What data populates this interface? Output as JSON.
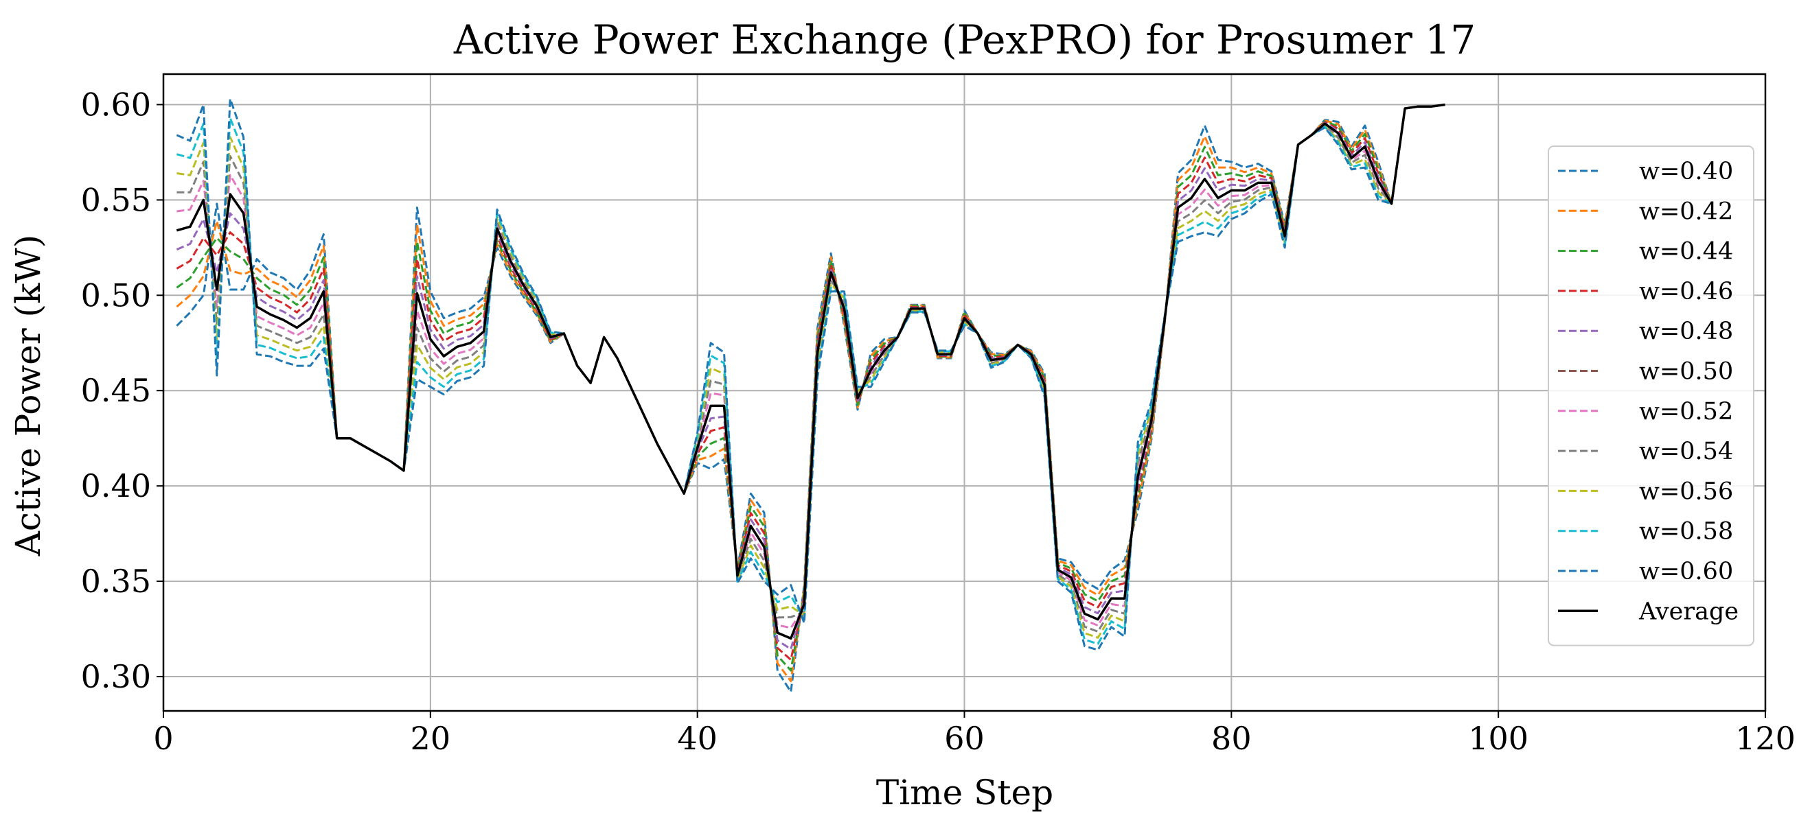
{
  "chart_data": {
    "type": "line",
    "title": "Active Power Exchange (PexPRO) for Prosumer 17",
    "xlabel": "Time Step",
    "ylabel": "Active Power (kW)",
    "xlim": [
      0,
      120
    ],
    "ylim": [
      0.282,
      0.616
    ],
    "xticks": [
      0,
      20,
      40,
      60,
      80,
      100,
      120
    ],
    "yticks": [
      0.3,
      0.35,
      0.4,
      0.45,
      0.5,
      0.55,
      0.6
    ],
    "xtick_labels": [
      "0",
      "20",
      "40",
      "60",
      "80",
      "100",
      "120"
    ],
    "ytick_labels": [
      "0.30",
      "0.35",
      "0.40",
      "0.45",
      "0.50",
      "0.55",
      "0.60"
    ],
    "grid": true,
    "legend_position": "right",
    "average": {
      "name": "Average",
      "color": "#000000",
      "x": [
        1,
        2,
        3,
        4,
        5,
        6,
        7,
        8,
        9,
        10,
        11,
        12,
        13,
        14,
        15,
        16,
        17,
        18,
        19,
        20,
        21,
        22,
        23,
        24,
        25,
        26,
        27,
        28,
        29,
        30,
        31,
        32,
        33,
        34,
        35,
        36,
        37,
        38,
        39,
        40,
        41,
        42,
        43,
        44,
        45,
        46,
        47,
        48,
        49,
        50,
        51,
        52,
        53,
        54,
        55,
        56,
        57,
        58,
        59,
        60,
        61,
        62,
        63,
        64,
        65,
        66,
        67,
        68,
        69,
        70,
        71,
        72,
        73,
        74,
        75,
        76,
        77,
        78,
        79,
        80,
        81,
        82,
        83,
        84,
        85,
        86,
        87,
        88,
        89,
        90,
        91,
        92,
        93,
        94,
        95,
        96
      ],
      "y": [
        0.534,
        0.536,
        0.55,
        0.503,
        0.553,
        0.543,
        0.494,
        0.49,
        0.487,
        0.483,
        0.488,
        0.502,
        0.425,
        0.425,
        0.421,
        0.417,
        0.413,
        0.408,
        0.501,
        0.477,
        0.468,
        0.473,
        0.475,
        0.481,
        0.535,
        0.518,
        0.505,
        0.494,
        0.478,
        0.48,
        0.463,
        0.454,
        0.478,
        0.467,
        0.452,
        0.437,
        0.422,
        0.409,
        0.396,
        0.42,
        0.442,
        0.442,
        0.353,
        0.379,
        0.368,
        0.323,
        0.32,
        0.338,
        0.47,
        0.512,
        0.493,
        0.446,
        0.461,
        0.471,
        0.478,
        0.493,
        0.493,
        0.469,
        0.469,
        0.488,
        0.48,
        0.466,
        0.467,
        0.474,
        0.469,
        0.453,
        0.356,
        0.352,
        0.333,
        0.33,
        0.341,
        0.341,
        0.405,
        0.434,
        0.487,
        0.546,
        0.551,
        0.561,
        0.551,
        0.555,
        0.555,
        0.559,
        0.559,
        0.531,
        0.579,
        0.584,
        0.59,
        0.585,
        0.572,
        0.578,
        0.56,
        0.548,
        0.598,
        0.599,
        0.599,
        0.6
      ]
    },
    "series": [
      {
        "name": "w=0.40",
        "color": "#1f77b4",
        "shift": -0.044,
        "coef": -1.0
      },
      {
        "name": "w=0.42",
        "color": "#ff7f0e",
        "shift": -0.038,
        "coef": -0.8
      },
      {
        "name": "w=0.44",
        "color": "#2ca02c",
        "shift": -0.029,
        "coef": -0.6
      },
      {
        "name": "w=0.46",
        "color": "#d62728",
        "shift": -0.02,
        "coef": -0.4
      },
      {
        "name": "w=0.48",
        "color": "#9467bd",
        "shift": -0.009,
        "coef": -0.2
      },
      {
        "name": "w=0.50",
        "color": "#8c564b",
        "shift": 0.0,
        "coef": 0.0
      },
      {
        "name": "w=0.52",
        "color": "#e377c2",
        "shift": 0.011,
        "coef": 0.2
      },
      {
        "name": "w=0.54",
        "color": "#7f7f7f",
        "shift": 0.02,
        "coef": 0.4
      },
      {
        "name": "w=0.56",
        "color": "#bcbd22",
        "shift": 0.03,
        "coef": 0.6
      },
      {
        "name": "w=0.58",
        "color": "#17becf",
        "shift": 0.04,
        "coef": 0.8
      },
      {
        "name": "w=0.60",
        "color": "#1f77b4",
        "shift": 0.05,
        "coef": 1.0
      }
    ],
    "deviation": [
      0.05,
      0.045,
      0.05,
      -0.045,
      0.05,
      0.04,
      -0.025,
      -0.022,
      -0.022,
      -0.02,
      -0.025,
      -0.03,
      0,
      0,
      0,
      0,
      0,
      0,
      -0.045,
      -0.025,
      -0.02,
      -0.018,
      -0.018,
      -0.018,
      0.01,
      0.008,
      0.006,
      0.005,
      0.003,
      0,
      0,
      0,
      0,
      0,
      0,
      0,
      0,
      0,
      0,
      0.008,
      0.033,
      0.028,
      -0.004,
      -0.017,
      -0.018,
      0.02,
      0.028,
      -0.01,
      -0.013,
      -0.01,
      0.009,
      0.006,
      -0.009,
      -0.006,
      0,
      -0.002,
      -0.002,
      0.002,
      0.002,
      -0.004,
      0,
      -0.004,
      -0.002,
      0,
      -0.002,
      -0.006,
      -0.006,
      -0.008,
      -0.017,
      -0.016,
      -0.015,
      -0.02,
      0.018,
      0.01,
      0.002,
      -0.018,
      -0.02,
      -0.028,
      -0.02,
      -0.015,
      -0.012,
      -0.01,
      -0.006,
      -0.006,
      0,
      0,
      -0.002,
      -0.006,
      -0.006,
      -0.011,
      -0.01,
      0,
      0,
      0,
      0,
      0
    ]
  }
}
